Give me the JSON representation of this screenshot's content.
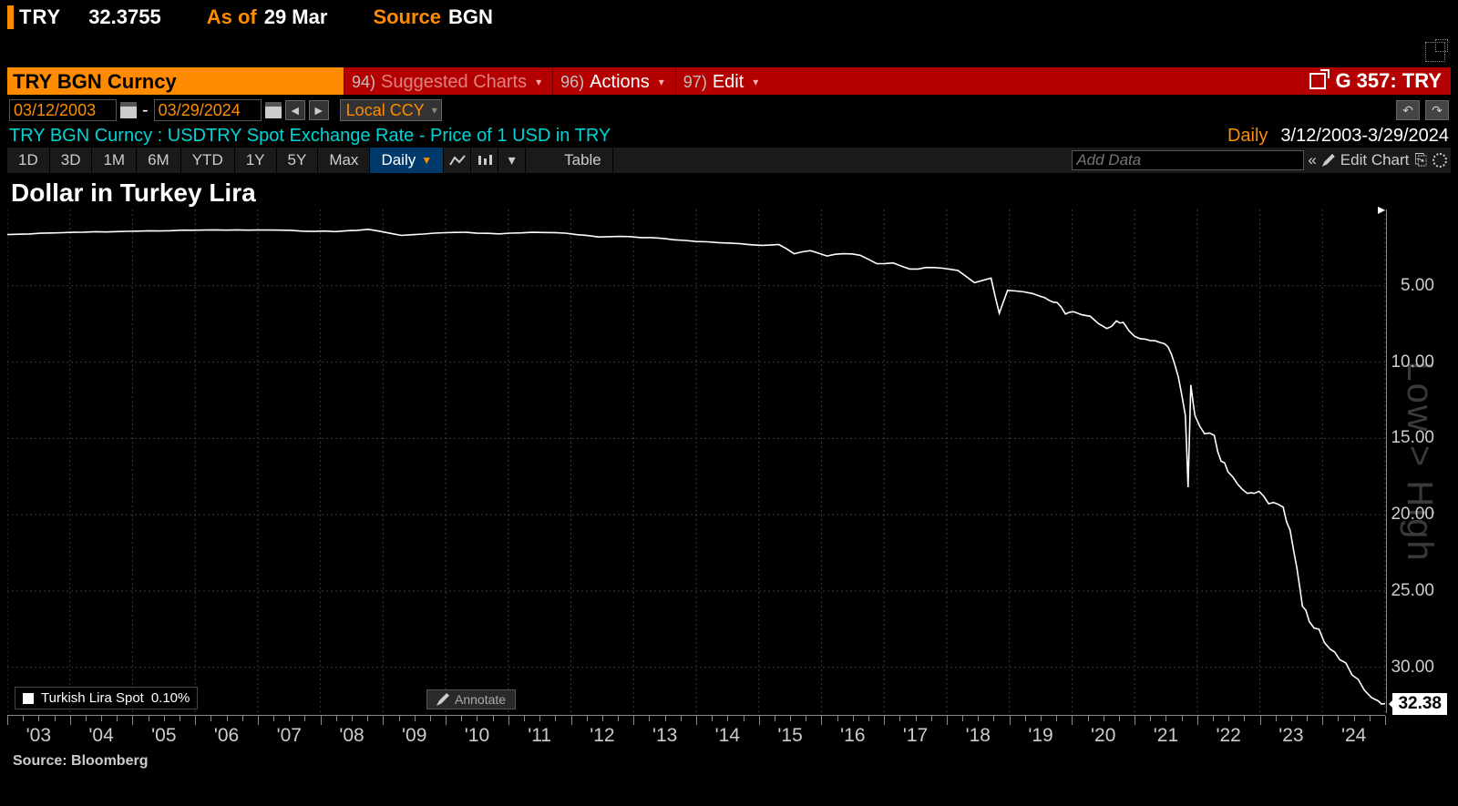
{
  "quote": {
    "symbol": "TRY",
    "value": "32.3755",
    "asof_label": "As of",
    "asof": "29 Mar",
    "source_label": "Source",
    "source": "BGN"
  },
  "cmdbar": {
    "security": "TRY BGN Curncy",
    "suggested": {
      "code": "94)",
      "label": "Suggested Charts"
    },
    "actions": {
      "code": "96)",
      "label": "Actions"
    },
    "edit": {
      "code": "97)",
      "label": "Edit"
    },
    "right": "G 357: TRY"
  },
  "datebar": {
    "from": "03/12/2003",
    "to": "03/29/2024",
    "ccy": "Local CCY"
  },
  "desc": {
    "text": "TRY BGN Curncy : USDTRY Spot Exchange Rate - Price of 1 USD in TRY",
    "freq": "Daily",
    "range": "3/12/2003-3/29/2024"
  },
  "rangetb": {
    "items": [
      "1D",
      "3D",
      "1M",
      "6M",
      "YTD",
      "1Y",
      "5Y",
      "Max"
    ],
    "selected": "Daily",
    "table": "Table",
    "add_placeholder": "Add Data",
    "edit_chart": "Edit Chart"
  },
  "chart": {
    "title": "Dollar in Turkey Lira",
    "type": "line",
    "line_color": "#ffffff",
    "background": "#000000",
    "grid_color": "#3a3a3a",
    "grid_dash": "2,3",
    "x_years": [
      "'03",
      "'04",
      "'05",
      "'06",
      "'07",
      "'08",
      "'09",
      "'10",
      "'11",
      "'12",
      "'13",
      "'14",
      "'15",
      "'16",
      "'17",
      "'18",
      "'19",
      "'20",
      "'21",
      "'22",
      "'23",
      "'24"
    ],
    "y_ticks": [
      5,
      10,
      15,
      20,
      25,
      30
    ],
    "y_min": 0,
    "y_max": 33,
    "last_value": "32.38",
    "watermark": "Low > High",
    "legend": {
      "name": "Turkish Lira Spot",
      "pct": "0.10%"
    },
    "annotate_label": "Annotate",
    "series": [
      [
        0.0,
        1.65
      ],
      [
        0.048,
        1.5
      ],
      [
        0.095,
        1.42
      ],
      [
        0.143,
        1.35
      ],
      [
        0.19,
        1.35
      ],
      [
        0.238,
        1.45
      ],
      [
        0.262,
        1.3
      ],
      [
        0.286,
        1.7
      ],
      [
        0.31,
        1.55
      ],
      [
        0.333,
        1.5
      ],
      [
        0.357,
        1.6
      ],
      [
        0.381,
        1.5
      ],
      [
        0.405,
        1.55
      ],
      [
        0.429,
        1.8
      ],
      [
        0.452,
        1.78
      ],
      [
        0.476,
        1.9
      ],
      [
        0.5,
        2.1
      ],
      [
        0.524,
        2.2
      ],
      [
        0.548,
        2.35
      ],
      [
        0.56,
        2.3
      ],
      [
        0.571,
        2.9
      ],
      [
        0.583,
        2.7
      ],
      [
        0.595,
        3.05
      ],
      [
        0.607,
        2.9
      ],
      [
        0.619,
        3.0
      ],
      [
        0.631,
        3.55
      ],
      [
        0.643,
        3.5
      ],
      [
        0.655,
        3.9
      ],
      [
        0.667,
        3.8
      ],
      [
        0.679,
        3.85
      ],
      [
        0.69,
        4.0
      ],
      [
        0.702,
        4.8
      ],
      [
        0.714,
        4.5
      ],
      [
        0.72,
        6.8
      ],
      [
        0.726,
        5.3
      ],
      [
        0.738,
        5.4
      ],
      [
        0.75,
        5.7
      ],
      [
        0.756,
        5.95
      ],
      [
        0.762,
        6.1
      ],
      [
        0.768,
        6.85
      ],
      [
        0.774,
        6.7
      ],
      [
        0.786,
        7.0
      ],
      [
        0.798,
        7.8
      ],
      [
        0.805,
        7.3
      ],
      [
        0.81,
        7.4
      ],
      [
        0.818,
        8.3
      ],
      [
        0.826,
        8.5
      ],
      [
        0.833,
        8.6
      ],
      [
        0.84,
        8.8
      ],
      [
        0.845,
        9.5
      ],
      [
        0.85,
        11.0
      ],
      [
        0.855,
        13.5
      ],
      [
        0.857,
        18.2
      ],
      [
        0.859,
        11.5
      ],
      [
        0.862,
        13.5
      ],
      [
        0.869,
        14.7
      ],
      [
        0.876,
        14.8
      ],
      [
        0.881,
        16.5
      ],
      [
        0.886,
        17.2
      ],
      [
        0.893,
        18.0
      ],
      [
        0.9,
        18.6
      ],
      [
        0.905,
        18.6
      ],
      [
        0.912,
        18.8
      ],
      [
        0.919,
        19.2
      ],
      [
        0.926,
        19.5
      ],
      [
        0.931,
        21.0
      ],
      [
        0.936,
        23.5
      ],
      [
        0.94,
        26.0
      ],
      [
        0.945,
        27.0
      ],
      [
        0.952,
        27.5
      ],
      [
        0.96,
        28.8
      ],
      [
        0.967,
        29.5
      ],
      [
        0.976,
        30.5
      ],
      [
        0.985,
        31.5
      ],
      [
        0.995,
        32.2
      ],
      [
        1.0,
        32.38
      ]
    ]
  },
  "footer": {
    "source": "Source: Bloomberg"
  }
}
